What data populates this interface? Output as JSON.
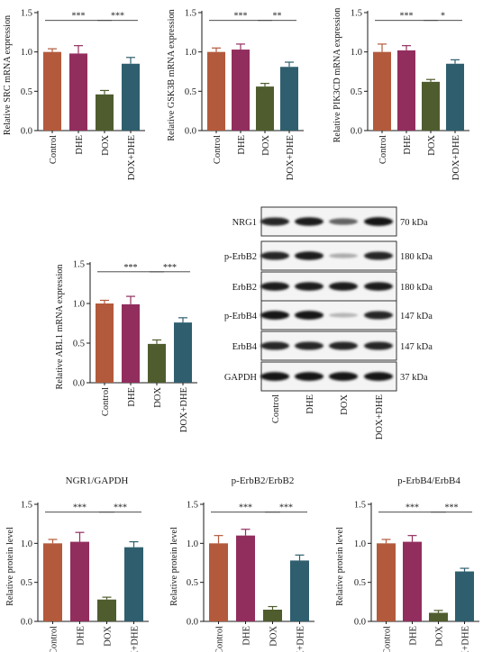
{
  "colors": {
    "Control": "#b35a3c",
    "DHE": "#922e5e",
    "DOX": "#4f5d2e",
    "DOX+DHE": "#2f5f6e"
  },
  "chart_data": [
    {
      "id": "src",
      "type": "bar",
      "title": "",
      "ylabel": "Relative SRC mRNA expression",
      "categories": [
        "Control",
        "DHE",
        "DOX",
        "DOX+DHE"
      ],
      "values": [
        1.0,
        0.98,
        0.46,
        0.85
      ],
      "errors": [
        0.04,
        0.1,
        0.05,
        0.08
      ],
      "ylim": [
        0,
        1.5
      ],
      "yticks": [
        "0.0",
        "0.5",
        "1.0",
        "1.5"
      ],
      "significance": [
        {
          "from": 0,
          "to": 2,
          "label": "***"
        },
        {
          "from": 2,
          "to": 3,
          "label": "***"
        }
      ]
    },
    {
      "id": "gsk3b",
      "type": "bar",
      "title": "",
      "ylabel": "Relative GSK3B mRNA expression",
      "categories": [
        "Control",
        "DHE",
        "DOX",
        "DOX+DHE"
      ],
      "values": [
        1.0,
        1.03,
        0.56,
        0.81
      ],
      "errors": [
        0.05,
        0.07,
        0.04,
        0.06
      ],
      "ylim": [
        0,
        1.5
      ],
      "yticks": [
        "0.0",
        "0.5",
        "1.0",
        "1.5"
      ],
      "significance": [
        {
          "from": 0,
          "to": 2,
          "label": "***"
        },
        {
          "from": 2,
          "to": 3,
          "label": "**"
        }
      ]
    },
    {
      "id": "pik3cd",
      "type": "bar",
      "title": "",
      "ylabel": "Relative PIK3CD mRNA expression",
      "categories": [
        "Control",
        "DHE",
        "DOX",
        "DOX+DHE"
      ],
      "values": [
        1.0,
        1.02,
        0.62,
        0.85
      ],
      "errors": [
        0.1,
        0.06,
        0.03,
        0.05
      ],
      "ylim": [
        0,
        1.5
      ],
      "yticks": [
        "0.0",
        "0.5",
        "1.0",
        "1.5"
      ],
      "significance": [
        {
          "from": 0,
          "to": 2,
          "label": "***"
        },
        {
          "from": 2,
          "to": 3,
          "label": "*"
        }
      ]
    },
    {
      "id": "abl1",
      "type": "bar",
      "title": "",
      "ylabel": "Relative ABL1 mRNA expression",
      "categories": [
        "Control",
        "DHE",
        "DOX",
        "DOX+DHE"
      ],
      "values": [
        1.0,
        0.99,
        0.49,
        0.76
      ],
      "errors": [
        0.04,
        0.1,
        0.05,
        0.06
      ],
      "ylim": [
        0,
        1.5
      ],
      "yticks": [
        "0.0",
        "0.5",
        "1.0",
        "1.5"
      ],
      "significance": [
        {
          "from": 0,
          "to": 2,
          "label": "***"
        },
        {
          "from": 2,
          "to": 3,
          "label": "***"
        }
      ]
    },
    {
      "id": "ngr1",
      "type": "bar",
      "title": "NGR1/GAPDH",
      "ylabel": "Relative protein level",
      "categories": [
        "Control",
        "DHE",
        "DOX",
        "DOX+DHE"
      ],
      "values": [
        1.0,
        1.02,
        0.28,
        0.95
      ],
      "errors": [
        0.05,
        0.12,
        0.03,
        0.07
      ],
      "ylim": [
        0,
        1.5
      ],
      "yticks": [
        "0.0",
        "0.5",
        "1.0",
        "1.5"
      ],
      "significance": [
        {
          "from": 0,
          "to": 2,
          "label": "***"
        },
        {
          "from": 2,
          "to": 3,
          "label": "***"
        }
      ]
    },
    {
      "id": "perbb2",
      "type": "bar",
      "title": "p-ErbB2/ErbB2",
      "ylabel": "Relative protein level",
      "categories": [
        "Control",
        "DHE",
        "DOX",
        "DOX+DHE"
      ],
      "values": [
        1.0,
        1.1,
        0.15,
        0.78
      ],
      "errors": [
        0.1,
        0.08,
        0.04,
        0.07
      ],
      "ylim": [
        0,
        1.5
      ],
      "yticks": [
        "0.0",
        "0.5",
        "1.0",
        "1.5"
      ],
      "significance": [
        {
          "from": 0,
          "to": 2,
          "label": "***"
        },
        {
          "from": 2,
          "to": 3,
          "label": "***"
        }
      ]
    },
    {
      "id": "perbb4",
      "type": "bar",
      "title": "p-ErbB4/ErbB4",
      "ylabel": "Relative protein level",
      "categories": [
        "Control",
        "DHE",
        "DOX",
        "DOX+DHE"
      ],
      "values": [
        1.0,
        1.02,
        0.11,
        0.64
      ],
      "errors": [
        0.05,
        0.08,
        0.03,
        0.04
      ],
      "ylim": [
        0,
        1.5
      ],
      "yticks": [
        "0.0",
        "0.5",
        "1.0",
        "1.5"
      ],
      "significance": [
        {
          "from": 0,
          "to": 2,
          "label": "***"
        },
        {
          "from": 2,
          "to": 3,
          "label": "***"
        }
      ]
    }
  ],
  "western_blot": {
    "rows": [
      {
        "label": "NRG1",
        "kda": "70 kDa",
        "intensity": [
          0.85,
          0.9,
          0.55,
          0.95
        ]
      },
      {
        "label": "p-ErbB2",
        "kda": "180 kDa",
        "intensity": [
          0.85,
          0.92,
          0.2,
          0.85
        ]
      },
      {
        "label": "ErbB2",
        "kda": "180 kDa",
        "intensity": [
          0.9,
          0.9,
          0.9,
          0.9
        ]
      },
      {
        "label": "p-ErbB4",
        "kda": "147 kDa",
        "intensity": [
          0.95,
          0.95,
          0.15,
          0.85
        ]
      },
      {
        "label": "ErbB4",
        "kda": "147 kDa",
        "intensity": [
          0.85,
          0.85,
          0.85,
          0.85
        ]
      },
      {
        "label": "GAPDH",
        "kda": "37 kDa",
        "intensity": [
          0.95,
          0.95,
          0.95,
          0.95
        ]
      }
    ],
    "lanes": [
      "Control",
      "DHE",
      "DOX",
      "DOX+DHE"
    ]
  }
}
